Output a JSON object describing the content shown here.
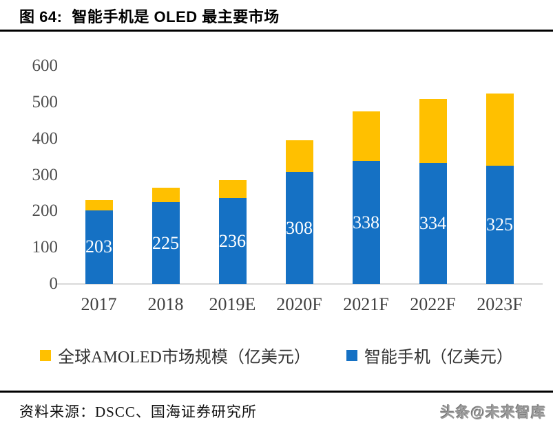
{
  "header": {
    "figure_label": "图 64:",
    "title": "智能手机是 OLED 最主要市场"
  },
  "chart_data": {
    "type": "bar",
    "stacked": true,
    "title": "智能手机是 OLED 最主要市场",
    "categories": [
      "2017",
      "2018",
      "2019E",
      "2020F",
      "2021F",
      "2022F",
      "2023F"
    ],
    "series": [
      {
        "name": "智能手机（亿美元）",
        "color": "#1571C4",
        "values": [
          203,
          225,
          236,
          308,
          338,
          334,
          325
        ],
        "data_labels_visible": true,
        "label_color": "#FFFFFF"
      },
      {
        "name": "全球AMOLED市场规模（亿美元）",
        "color": "#FFC000",
        "values": [
          27,
          40,
          49,
          87,
          137,
          176,
          200
        ],
        "data_labels_visible": false
      }
    ],
    "stack_totals_estimated": [
      230,
      265,
      285,
      395,
      475,
      510,
      525
    ],
    "xlabel": "",
    "ylabel": "",
    "ylim": [
      0,
      600
    ],
    "yticks": [
      0,
      100,
      200,
      300,
      400,
      500,
      600
    ],
    "gridlines": false,
    "legend_position": "bottom",
    "axis_line_color": "#D9D9D9",
    "tick_label_color": "#4D4D4D"
  },
  "legend": [
    {
      "label": "全球AMOLED市场规模（亿美元）",
      "color": "#FFC000"
    },
    {
      "label": "智能手机（亿美元）",
      "color": "#1571C4"
    }
  ],
  "footer": {
    "source": "资料来源：DSCC、国海证券研究所",
    "watermark": "头条@未来智库"
  }
}
